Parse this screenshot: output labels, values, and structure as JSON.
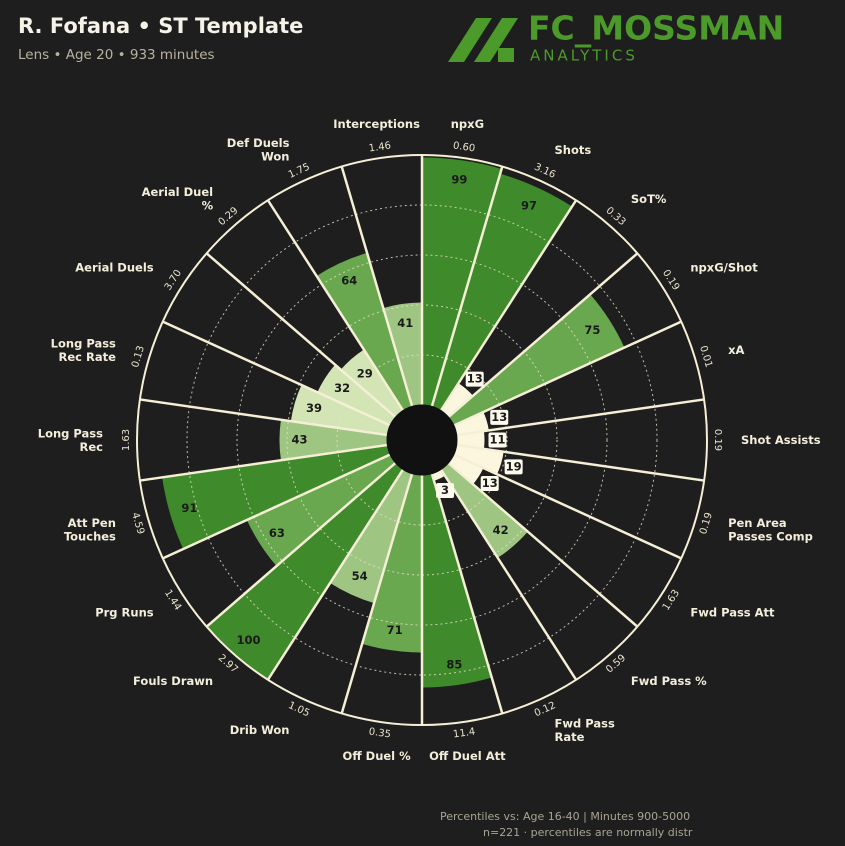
{
  "title": "R. Fofana • ST Template",
  "subtitle": "Lens • Age 20 • 933 minutes",
  "logo": {
    "name": "FC_MOSSMAN",
    "tagline": "ANALYTICS"
  },
  "footer": [
    "Percentiles vs: Age 16-40 | Minutes 900-5000",
    "n=221 · percentiles are normally distr"
  ],
  "chart_data": {
    "type": "pizza",
    "categories": [
      [
        "npxG"
      ],
      [
        "Shots"
      ],
      [
        "SoT%"
      ],
      [
        "npxG/Shot"
      ],
      [
        "xA"
      ],
      [
        "Shot Assists"
      ],
      [
        "Pen Area",
        "Passes Comp"
      ],
      [
        "Fwd Pass Att"
      ],
      [
        "Fwd Pass %"
      ],
      [
        "Fwd Pass",
        "Rate"
      ],
      [
        "Off Duel Att"
      ],
      [
        "Off Duel %"
      ],
      [
        "Drib Won"
      ],
      [
        "Fouls Drawn"
      ],
      [
        "Prg Runs"
      ],
      [
        "Att Pen",
        "Touches"
      ],
      [
        "Long Pass",
        "Rec"
      ],
      [
        "Long Pass",
        "Rec Rate"
      ],
      [
        "Aerial Duels"
      ],
      [
        "Aerial Duel",
        "%"
      ],
      [
        "Def Duels",
        "Won"
      ],
      [
        "Interceptions"
      ]
    ],
    "values": [
      99,
      97,
      13,
      75,
      13,
      11,
      19,
      13,
      42,
      3,
      85,
      71,
      54,
      100,
      63,
      91,
      43,
      39,
      32,
      29,
      64,
      41
    ],
    "stat_values": [
      {
        "value": 0.6,
        "label": "0.60"
      },
      3.16,
      0.33,
      0.19,
      0.01,
      0.19,
      0.19,
      1.63,
      0.59,
      0.12,
      11.4,
      0.35,
      1.05,
      2.97,
      1.44,
      4.59,
      1.63,
      0.13,
      {
        "value": 3.7,
        "label": "3.70"
      },
      0.29,
      1.75,
      1.46
    ],
    "colors": [
      "#3f8a2b",
      "#3f8a2b",
      "#fdf6df",
      "#6aa84f",
      "#fdf6df",
      "#fdf6df",
      "#fdf6df",
      "#fdf6df",
      "#9fc583",
      "#fdf6df",
      "#3f8a2b",
      "#6aa84f",
      "#9fc583",
      "#3f8a2b",
      "#6aa84f",
      "#3f8a2b",
      "#9fc583",
      "#d3e4b5",
      "#d3e4b5",
      "#d3e4b5",
      "#6aa84f",
      "#9fc583"
    ],
    "rlim": [
      0,
      100
    ],
    "rticks": [
      20,
      40,
      60,
      80
    ],
    "grid": true
  }
}
